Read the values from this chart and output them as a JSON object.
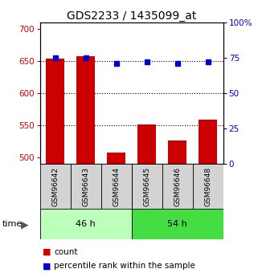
{
  "title": "GDS2233 / 1435099_at",
  "samples": [
    "GSM96642",
    "GSM96643",
    "GSM96644",
    "GSM96645",
    "GSM96646",
    "GSM96648"
  ],
  "group_labels": [
    "46 h",
    "54 h"
  ],
  "group_colors": [
    "#bbffbb",
    "#44dd44"
  ],
  "count_values": [
    653,
    657,
    507,
    551,
    526,
    558
  ],
  "percentile_values": [
    75,
    75,
    71,
    72,
    71,
    72
  ],
  "ylim_left": [
    490,
    710
  ],
  "ylim_right": [
    0,
    100
  ],
  "yticks_left": [
    500,
    550,
    600,
    650,
    700
  ],
  "yticks_right": [
    0,
    25,
    50,
    75,
    100
  ],
  "bar_color": "#cc0000",
  "dot_color": "#0000cc",
  "background_color": "#ffffff",
  "bar_width": 0.6,
  "title_fontsize": 10,
  "tick_fontsize": 7.5,
  "sample_label_fontsize": 6.5,
  "group_label_fontsize": 8,
  "legend_fontsize": 7.5
}
